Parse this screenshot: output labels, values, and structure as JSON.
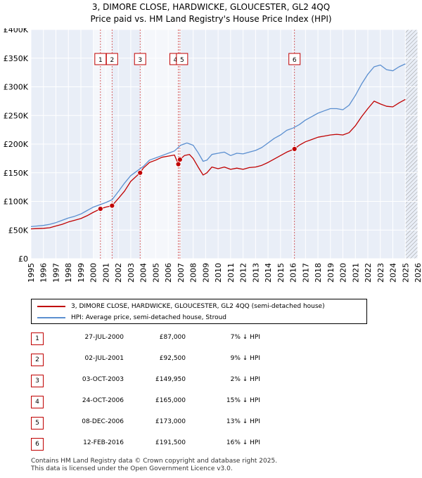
{
  "title": {
    "line1": "3, DIMORE CLOSE, HARDWICKE, GLOUCESTER, GL2 4QQ",
    "line2": "Price paid vs. HM Land Registry's House Price Index (HPI)"
  },
  "colors": {
    "price_paid": "#c00000",
    "hpi": "#5b8fd0",
    "grid": "#cccccc",
    "bg": "#e9eef7"
  },
  "chart_data": {
    "type": "line",
    "xlim": [
      1995,
      2026
    ],
    "ylim": [
      0,
      400000
    ],
    "y_ticks": [
      {
        "value": 0,
        "label": "£0"
      },
      {
        "value": 50000,
        "label": "£50K"
      },
      {
        "value": 100000,
        "label": "£100K"
      },
      {
        "value": 150000,
        "label": "£150K"
      },
      {
        "value": 200000,
        "label": "£200K"
      },
      {
        "value": 250000,
        "label": "£250K"
      },
      {
        "value": 300000,
        "label": "£300K"
      },
      {
        "value": 350000,
        "label": "£350K"
      },
      {
        "value": 400000,
        "label": "£400K"
      }
    ],
    "x_ticks": [
      "1995",
      "1996",
      "1997",
      "1998",
      "1999",
      "2000",
      "2001",
      "2002",
      "2003",
      "2004",
      "2005",
      "2006",
      "2007",
      "2008",
      "2009",
      "2010",
      "2011",
      "2012",
      "2013",
      "2014",
      "2015",
      "2016",
      "2017",
      "2018",
      "2019",
      "2020",
      "2021",
      "2022",
      "2023",
      "2024",
      "2025",
      "2026"
    ],
    "future_hatch_from": 2025.0,
    "series": [
      {
        "name": "3, DIMORE CLOSE, HARDWICKE, GLOUCESTER, GL2 4QQ (semi-detached house)",
        "color": "#c00000",
        "x": [
          1995.0,
          1995.5,
          1996.0,
          1996.5,
          1997.0,
          1997.5,
          1998.0,
          1998.5,
          1999.0,
          1999.5,
          2000.0,
          2000.57,
          2001.0,
          2001.5,
          2002.0,
          2002.5,
          2003.0,
          2003.75,
          2004.0,
          2004.5,
          2005.0,
          2005.5,
          2006.0,
          2006.5,
          2006.81,
          2006.94,
          2007.3,
          2007.7,
          2008.0,
          2008.4,
          2008.8,
          2009.1,
          2009.5,
          2010.0,
          2010.5,
          2011.0,
          2011.5,
          2012.0,
          2012.5,
          2013.0,
          2013.5,
          2014.0,
          2014.5,
          2015.0,
          2015.5,
          2016.12,
          2016.5,
          2017.0,
          2017.5,
          2018.0,
          2018.5,
          2019.0,
          2019.5,
          2020.0,
          2020.5,
          2021.0,
          2021.5,
          2022.0,
          2022.5,
          2023.0,
          2023.5,
          2024.0,
          2024.5,
          2025.0
        ],
        "values": [
          52000,
          52500,
          53000,
          54000,
          57000,
          60000,
          64000,
          67000,
          70000,
          75000,
          81000,
          87000,
          90000,
          92500,
          105000,
          118000,
          135000,
          149950,
          158000,
          168000,
          172000,
          177000,
          179000,
          181000,
          165000,
          173000,
          180000,
          182000,
          175000,
          160000,
          146000,
          150000,
          160000,
          157000,
          160000,
          156000,
          158000,
          156000,
          159000,
          160000,
          163000,
          168000,
          174000,
          180000,
          186000,
          191500,
          198000,
          204000,
          208000,
          212000,
          214000,
          216000,
          217000,
          216000,
          220000,
          232000,
          248000,
          262000,
          275000,
          270000,
          266000,
          265000,
          272000,
          278000
        ]
      },
      {
        "name": "HPI: Average price, semi-detached house, Stroud",
        "color": "#5b8fd0",
        "x": [
          1995.0,
          1995.5,
          1996.0,
          1996.5,
          1997.0,
          1997.5,
          1998.0,
          1998.5,
          1999.0,
          1999.5,
          2000.0,
          2000.5,
          2001.0,
          2001.5,
          2002.0,
          2002.5,
          2003.0,
          2003.5,
          2004.0,
          2004.5,
          2005.0,
          2005.5,
          2006.0,
          2006.5,
          2007.0,
          2007.5,
          2008.0,
          2008.4,
          2008.8,
          2009.1,
          2009.5,
          2010.0,
          2010.5,
          2011.0,
          2011.5,
          2012.0,
          2012.5,
          2013.0,
          2013.5,
          2014.0,
          2014.5,
          2015.0,
          2015.5,
          2016.0,
          2016.5,
          2017.0,
          2017.5,
          2018.0,
          2018.5,
          2019.0,
          2019.5,
          2020.0,
          2020.5,
          2021.0,
          2021.5,
          2022.0,
          2022.5,
          2023.0,
          2023.5,
          2024.0,
          2024.5,
          2025.0
        ],
        "values": [
          56000,
          57000,
          58000,
          60000,
          63000,
          67000,
          71000,
          74000,
          78000,
          84000,
          90000,
          94000,
          98000,
          103000,
          117000,
          132000,
          145000,
          153000,
          161000,
          172000,
          176000,
          180000,
          184000,
          188000,
          198000,
          202000,
          198000,
          185000,
          170000,
          172000,
          182000,
          184000,
          186000,
          180000,
          184000,
          183000,
          186000,
          189000,
          194000,
          202000,
          210000,
          216000,
          224000,
          228000,
          234000,
          242000,
          248000,
          254000,
          258000,
          262000,
          262000,
          260000,
          268000,
          285000,
          305000,
          322000,
          335000,
          338000,
          330000,
          328000,
          335000,
          340000
        ]
      }
    ],
    "sales": [
      {
        "label": "1",
        "x": 2000.57,
        "value": 87000
      },
      {
        "label": "2",
        "x": 2001.5,
        "value": 92500
      },
      {
        "label": "3",
        "x": 2003.75,
        "value": 149950
      },
      {
        "label": "4",
        "x": 2006.81,
        "value": 165000
      },
      {
        "label": "5",
        "x": 2006.94,
        "value": 173000
      },
      {
        "label": "6",
        "x": 2016.12,
        "value": 191500
      }
    ],
    "shaded_spans": [
      [
        2000.0,
        2001.5
      ],
      [
        2003.75,
        2006.94
      ]
    ]
  },
  "legend": {
    "price_paid_label": "3, DIMORE CLOSE, HARDWICKE, GLOUCESTER, GL2 4QQ (semi-detached house)",
    "hpi_label": "HPI: Average price, semi-detached house, Stroud"
  },
  "transactions": [
    {
      "num": "1",
      "date": "27-JUL-2000",
      "price": "£87,000",
      "hpi": "7% ↓ HPI"
    },
    {
      "num": "2",
      "date": "02-JUL-2001",
      "price": "£92,500",
      "hpi": "9% ↓ HPI"
    },
    {
      "num": "3",
      "date": "03-OCT-2003",
      "price": "£149,950",
      "hpi": "2% ↓ HPI"
    },
    {
      "num": "4",
      "date": "24-OCT-2006",
      "price": "£165,000",
      "hpi": "15% ↓ HPI"
    },
    {
      "num": "5",
      "date": "08-DEC-2006",
      "price": "£173,000",
      "hpi": "13% ↓ HPI"
    },
    {
      "num": "6",
      "date": "12-FEB-2016",
      "price": "£191,500",
      "hpi": "16% ↓ HPI"
    }
  ],
  "footer": {
    "line1": "Contains HM Land Registry data © Crown copyright and database right 2025.",
    "line2": "This data is licensed under the Open Government Licence v3.0."
  }
}
